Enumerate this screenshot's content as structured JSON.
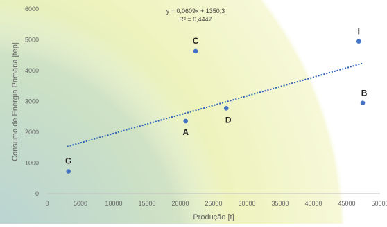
{
  "chart_data": {
    "type": "scatter",
    "title": "",
    "xlabel": "Produção [t]",
    "ylabel": "Consumo de Energia Primária [tep]",
    "xlim": [
      0,
      50000
    ],
    "ylim": [
      0,
      6000
    ],
    "x_ticks": [
      "0",
      "5000",
      "10000",
      "15000",
      "20000",
      "25000",
      "30000",
      "35000",
      "40000",
      "45000",
      "50000"
    ],
    "y_ticks": [
      "0",
      "1000",
      "2000",
      "3000",
      "4000",
      "5000",
      "6000"
    ],
    "grid": false,
    "points": [
      {
        "label": "G",
        "x": 3200,
        "y": 730
      },
      {
        "label": "A",
        "x": 20800,
        "y": 2360
      },
      {
        "label": "C",
        "x": 22300,
        "y": 4630
      },
      {
        "label": "D",
        "x": 26900,
        "y": 2780
      },
      {
        "label": "I",
        "x": 46800,
        "y": 4950
      },
      {
        "label": "B",
        "x": 47400,
        "y": 2950
      }
    ],
    "trendline": {
      "type": "linear",
      "slope": 0.0609,
      "intercept": 1350.3,
      "x_range": [
        3000,
        47400
      ],
      "equation": "y = 0,0609x + 1350,3",
      "r_squared": "R² = 0,4447"
    },
    "colors": {
      "point": "#4472c4",
      "trendline": "#2e62b5",
      "axis": "#bfbfbf",
      "text": "#666666",
      "background_yellow": "#eef3b8",
      "background_green": "#c9e2bb",
      "background_teal": "#b5d4d9"
    }
  }
}
